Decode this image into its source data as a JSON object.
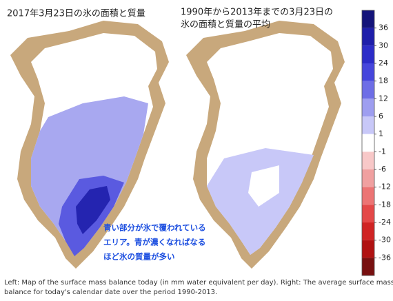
{
  "titles": {
    "left": "2017年3月23日の氷の面積と質量",
    "right_lines": [
      "1990年から2013年までの3月23日の",
      "氷の面積と質量の平均"
    ]
  },
  "annotation_lines": [
    "青い部分が氷で覆われている",
    "エリア。青が濃くなればなる",
    "ほど氷の質量が多い"
  ],
  "caption_lines": [
    "Left: Map of the surface mass balance today (in mm water equivalent per day). Right: The average surface mass",
    "balance for today's calendar date over the period 1990-2013."
  ],
  "colorbar": {
    "ticks": [
      36,
      30,
      24,
      18,
      12,
      6,
      1,
      -1,
      -6,
      -12,
      -18,
      -24,
      -30,
      -36
    ],
    "colors": [
      "#14147a",
      "#1e1eaa",
      "#2c2cc8",
      "#4646dc",
      "#6e6ee6",
      "#9e9ef0",
      "#c8c8f8",
      "#ffffff",
      "#f8c8c8",
      "#f0a0a0",
      "#ec7474",
      "#e44848",
      "#d02424",
      "#b01212",
      "#781010"
    ]
  }
}
